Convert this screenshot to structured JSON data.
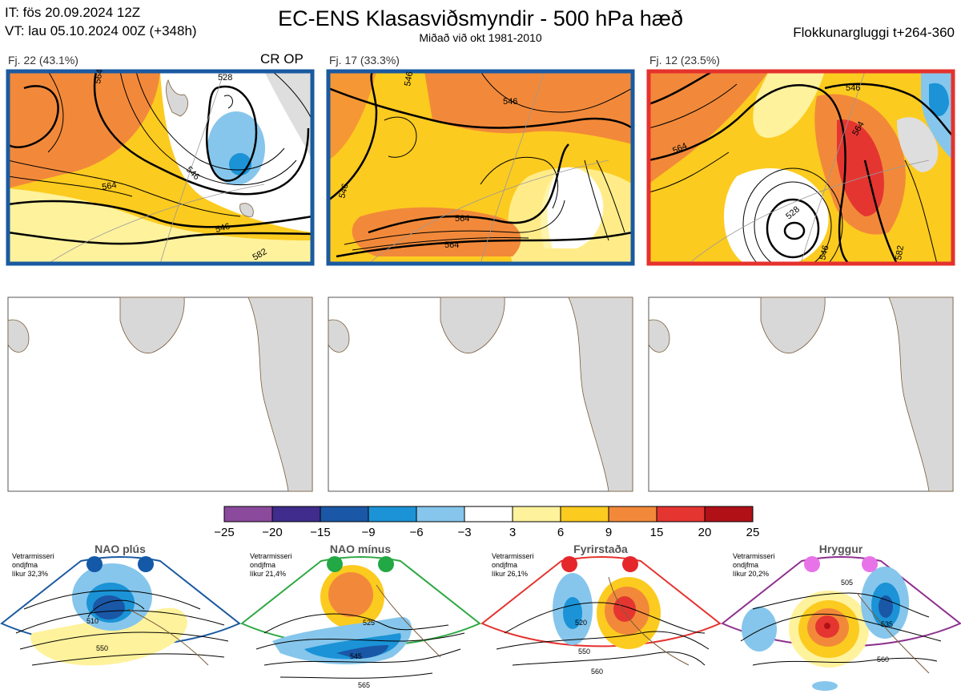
{
  "header": {
    "it": "IT: fös 20.09.2024 12Z",
    "vt": "VT: lau 05.10.2024 00Z  (+348h)",
    "title": "EC-ENS Klasasviðsmyndir - 500 hPa hæð",
    "subtitle": "Miðað við okt 1981-2010",
    "window": "Flokkunargluggi t+264-360"
  },
  "clusters": [
    {
      "label": "Fj. 22 (43.1%)",
      "extra": "CR OP",
      "frame": "#1a5aa0",
      "contours": [
        "564",
        "546",
        "528",
        "564",
        "582",
        "546"
      ]
    },
    {
      "label": "Fj. 17 (33.3%)",
      "extra": "",
      "frame": "#1a5aa0",
      "contours": [
        "546",
        "546",
        "546",
        "564",
        "564"
      ]
    },
    {
      "label": "Fj. 12 (23.5%)",
      "extra": "",
      "frame": "#e5322d",
      "contours": [
        "546",
        "564",
        "564",
        "528",
        "546",
        "582"
      ]
    }
  ],
  "chart_data": {
    "type": "heatmap",
    "colorbar": {
      "ticks": [
        "−25",
        "−20",
        "−15",
        "−9",
        "−6",
        "−3",
        "3",
        "6",
        "9",
        "15",
        "20",
        "25"
      ],
      "colors": [
        "#8b4a9c",
        "#3f2c8c",
        "#1a57a6",
        "#1b93d6",
        "#86c6ec",
        "#ffffff",
        "#fff29c",
        "#fccb1f",
        "#f2893a",
        "#e53531",
        "#b01117"
      ]
    },
    "regimes": [
      {
        "name": "NAO plús",
        "label_line1": "Vetrarmisseri",
        "label_line2": "ondjfma",
        "label_line3": "líkur 32,3%",
        "dot_color": "#1458a8",
        "frame": "#1a5aa0",
        "contours": [
          "510",
          "550"
        ]
      },
      {
        "name": "NAO mínus",
        "label_line1": "Vetrarmisseri",
        "label_line2": "ondjfma",
        "label_line3": "líkur 21,4%",
        "dot_color": "#22a845",
        "frame": "#2ea843",
        "contours": [
          "525",
          "545",
          "565"
        ]
      },
      {
        "name": "Fyrirstaða",
        "label_line1": "Vetrarmisseri",
        "label_line2": "ondjfma",
        "label_line3": "líkur 26,1%",
        "dot_color": "#e5262b",
        "frame": "#e5322d",
        "contours": [
          "520",
          "550",
          "560"
        ]
      },
      {
        "name": "Hryggur",
        "label_line1": "Vetrarmisseri",
        "label_line2": "ondjfma",
        "label_line3": "líkur 20,2%",
        "dot_color": "#e873e8",
        "frame": "#8e2f8e",
        "contours": [
          "505",
          "535",
          "560"
        ]
      }
    ]
  }
}
